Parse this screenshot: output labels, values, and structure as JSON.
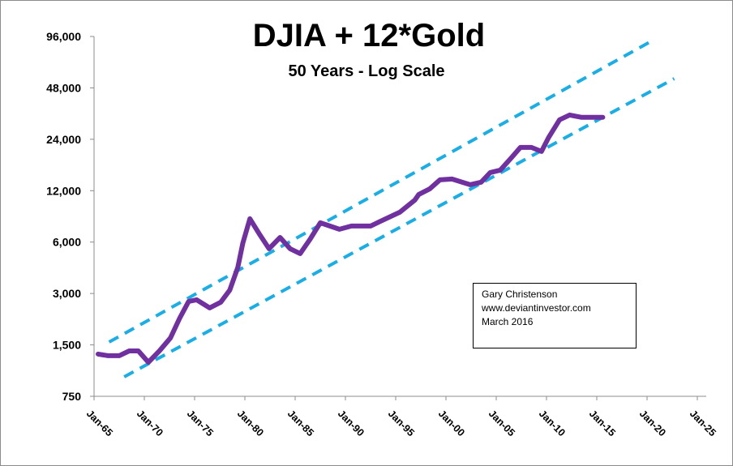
{
  "chart_data": {
    "type": "line",
    "title": "DJIA + 12*Gold",
    "subtitle": "50 Years - Log Scale",
    "xlabel": "",
    "ylabel": "",
    "yscale": "log2",
    "ylim": [
      750,
      96000
    ],
    "xlim": [
      1965,
      2025
    ],
    "grid": false,
    "legend": "none",
    "y_ticks": [
      {
        "value": 96000,
        "label": "96,000"
      },
      {
        "value": 48000,
        "label": "48,000"
      },
      {
        "value": 24000,
        "label": "24,000"
      },
      {
        "value": 12000,
        "label": "12,000"
      },
      {
        "value": 6000,
        "label": "6,000"
      },
      {
        "value": 3000,
        "label": "3,000"
      },
      {
        "value": 1500,
        "label": "1,500"
      },
      {
        "value": 750,
        "label": "750"
      }
    ],
    "x_ticks": [
      {
        "value": 1965,
        "label": "Jan-65"
      },
      {
        "value": 1970,
        "label": "Jan-70"
      },
      {
        "value": 1975,
        "label": "Jan-75"
      },
      {
        "value": 1980,
        "label": "Jan-80"
      },
      {
        "value": 1985,
        "label": "Jan-85"
      },
      {
        "value": 1990,
        "label": "Jan-90"
      },
      {
        "value": 1995,
        "label": "Jan-95"
      },
      {
        "value": 2000,
        "label": "Jan-00"
      },
      {
        "value": 2005,
        "label": "Jan-05"
      },
      {
        "value": 2010,
        "label": "Jan-10"
      },
      {
        "value": 2015,
        "label": "Jan-15"
      },
      {
        "value": 2020,
        "label": "Jan-20"
      },
      {
        "value": 2025,
        "label": "Jan-25"
      }
    ],
    "series": [
      {
        "name": "DJIA + 12*Gold",
        "color": "#7030A0",
        "style": "solid",
        "x": [
          1965.4,
          1966.4,
          1967.5,
          1968.5,
          1969.4,
          1970.4,
          1971.5,
          1972.6,
          1973.5,
          1974.4,
          1975.2,
          1976.5,
          1977.6,
          1978.5,
          1979.3,
          1979.8,
          1980.5,
          1981.5,
          1982.4,
          1983.5,
          1984.5,
          1985.5,
          1986.5,
          1987.5,
          1989.4,
          1990.6,
          1992.5,
          1993.5,
          1995.4,
          1996.9,
          1997.3,
          1998.4,
          1999.4,
          2000.6,
          2002.4,
          2003.5,
          2004.4,
          2005.4,
          2006.5,
          2007.4,
          2008.5,
          2009.5,
          2010.2,
          2011.3,
          2012.3,
          2013.5,
          2015.6
        ],
        "values": [
          1325,
          1296,
          1296,
          1383,
          1383,
          1187,
          1383,
          1648,
          2142,
          2695,
          2755,
          2470,
          2666,
          3141,
          4267,
          5922,
          8221,
          6605,
          5486,
          6390,
          5486,
          5137,
          6253,
          7780,
          7130,
          7449,
          7449,
          7953,
          8971,
          10570,
          11410,
          12320,
          13890,
          14050,
          13010,
          13450,
          15330,
          15840,
          18670,
          21510,
          21510,
          20360,
          24540,
          31200,
          33300,
          32250,
          32250
        ]
      },
      {
        "name": "Upper trend line",
        "color": "#1AAEE6",
        "style": "dashed",
        "x": [
          1966.5,
          2020.7
        ],
        "values": [
          1560,
          92000
        ]
      },
      {
        "name": "Lower trend line",
        "color": "#1AAEE6",
        "style": "dashed",
        "x": [
          1968.0,
          2022.7
        ],
        "values": [
          975,
          54400
        ]
      }
    ],
    "annotation": {
      "lines": [
        "Gary Christenson",
        "www.deviantinvestor.com",
        "March 2016"
      ]
    }
  }
}
